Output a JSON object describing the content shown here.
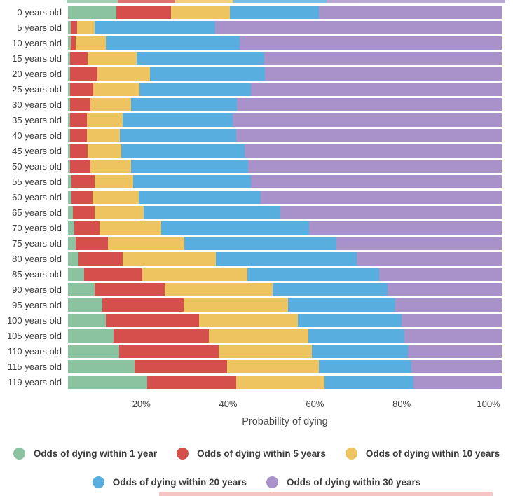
{
  "chart_data": {
    "type": "bar",
    "orientation": "horizontal-stacked",
    "xlabel": "Probability of dying",
    "xlim": [
      0,
      100
    ],
    "grid": false,
    "legend_position": "bottom",
    "x_ticks": [
      {
        "label": "20%",
        "value": 20
      },
      {
        "label": "40%",
        "value": 40
      },
      {
        "label": "60%",
        "value": 60
      },
      {
        "label": "80%",
        "value": 80
      },
      {
        "label": "100%",
        "value": 100
      }
    ],
    "categories": [
      "0 years old",
      "5 years old",
      "10 years old",
      "15 years old",
      "20 years old",
      "25 years old",
      "30 years old",
      "35 years old",
      "40 years old",
      "45 years old",
      "50 years old",
      "55 years old",
      "60 years old",
      "65 years old",
      "70 years old",
      "75 years old",
      "80 years old",
      "85 years old",
      "90 years old",
      "95 years old",
      "100 years old",
      "105 years old",
      "110 years old",
      "115 years old",
      "119 years old"
    ],
    "series": [
      {
        "name": "Odds of dying within 1 year",
        "color": "#8bc2a0",
        "values": [
          11.1,
          0.6,
          0.6,
          0.5,
          0.5,
          0.5,
          0.5,
          0.5,
          0.5,
          0.5,
          0.5,
          0.8,
          0.8,
          1.1,
          1.5,
          1.8,
          2.4,
          3.7,
          6.1,
          7.9,
          8.7,
          10.5,
          11.8,
          15.3,
          18.3
        ]
      },
      {
        "name": "Odds of dying within 5 years",
        "color": "#d5504c",
        "values": [
          12.6,
          1.5,
          1.1,
          4.0,
          6.3,
          5.3,
          4.7,
          3.9,
          3.9,
          4.0,
          4.7,
          5.3,
          4.8,
          5.0,
          5.8,
          7.4,
          10.2,
          13.4,
          16.2,
          18.7,
          21.5,
          22.0,
          22.9,
          21.3,
          20.4
        ]
      },
      {
        "name": "Odds of dying within 10 years",
        "color": "#edc460",
        "values": [
          13.7,
          4.0,
          7.0,
          11.3,
          12.1,
          10.7,
          9.4,
          8.2,
          7.6,
          7.8,
          9.4,
          9.0,
          10.7,
          11.3,
          14.2,
          17.6,
          21.5,
          24.2,
          24.9,
          24.1,
          22.8,
          22.9,
          21.6,
          21.3,
          20.5
        ]
      },
      {
        "name": "Odds of dying within 20 years",
        "color": "#58afdf",
        "values": [
          20.5,
          27.8,
          30.9,
          29.4,
          26.5,
          25.7,
          24.4,
          25.4,
          26.8,
          28.4,
          27.0,
          27.1,
          28.1,
          31.5,
          34.1,
          35.1,
          32.5,
          30.4,
          26.5,
          24.7,
          23.9,
          22.1,
          22.0,
          21.2,
          20.5
        ]
      },
      {
        "name": "Odds of dying within 30 years",
        "color": "#a992ca",
        "values": [
          42.1,
          66.1,
          60.4,
          54.8,
          54.6,
          57.8,
          61.0,
          62.0,
          61.2,
          59.3,
          58.4,
          57.8,
          55.6,
          51.1,
          44.4,
          38.1,
          33.4,
          28.3,
          26.3,
          24.6,
          23.1,
          22.5,
          21.7,
          20.9,
          20.3
        ]
      }
    ],
    "cropped_top_bar_values": [
      11.7,
      13.0,
      13.4,
      21.1,
      40.8
    ],
    "legend_rows": [
      [
        0,
        1,
        2
      ],
      [
        3,
        4
      ]
    ]
  }
}
